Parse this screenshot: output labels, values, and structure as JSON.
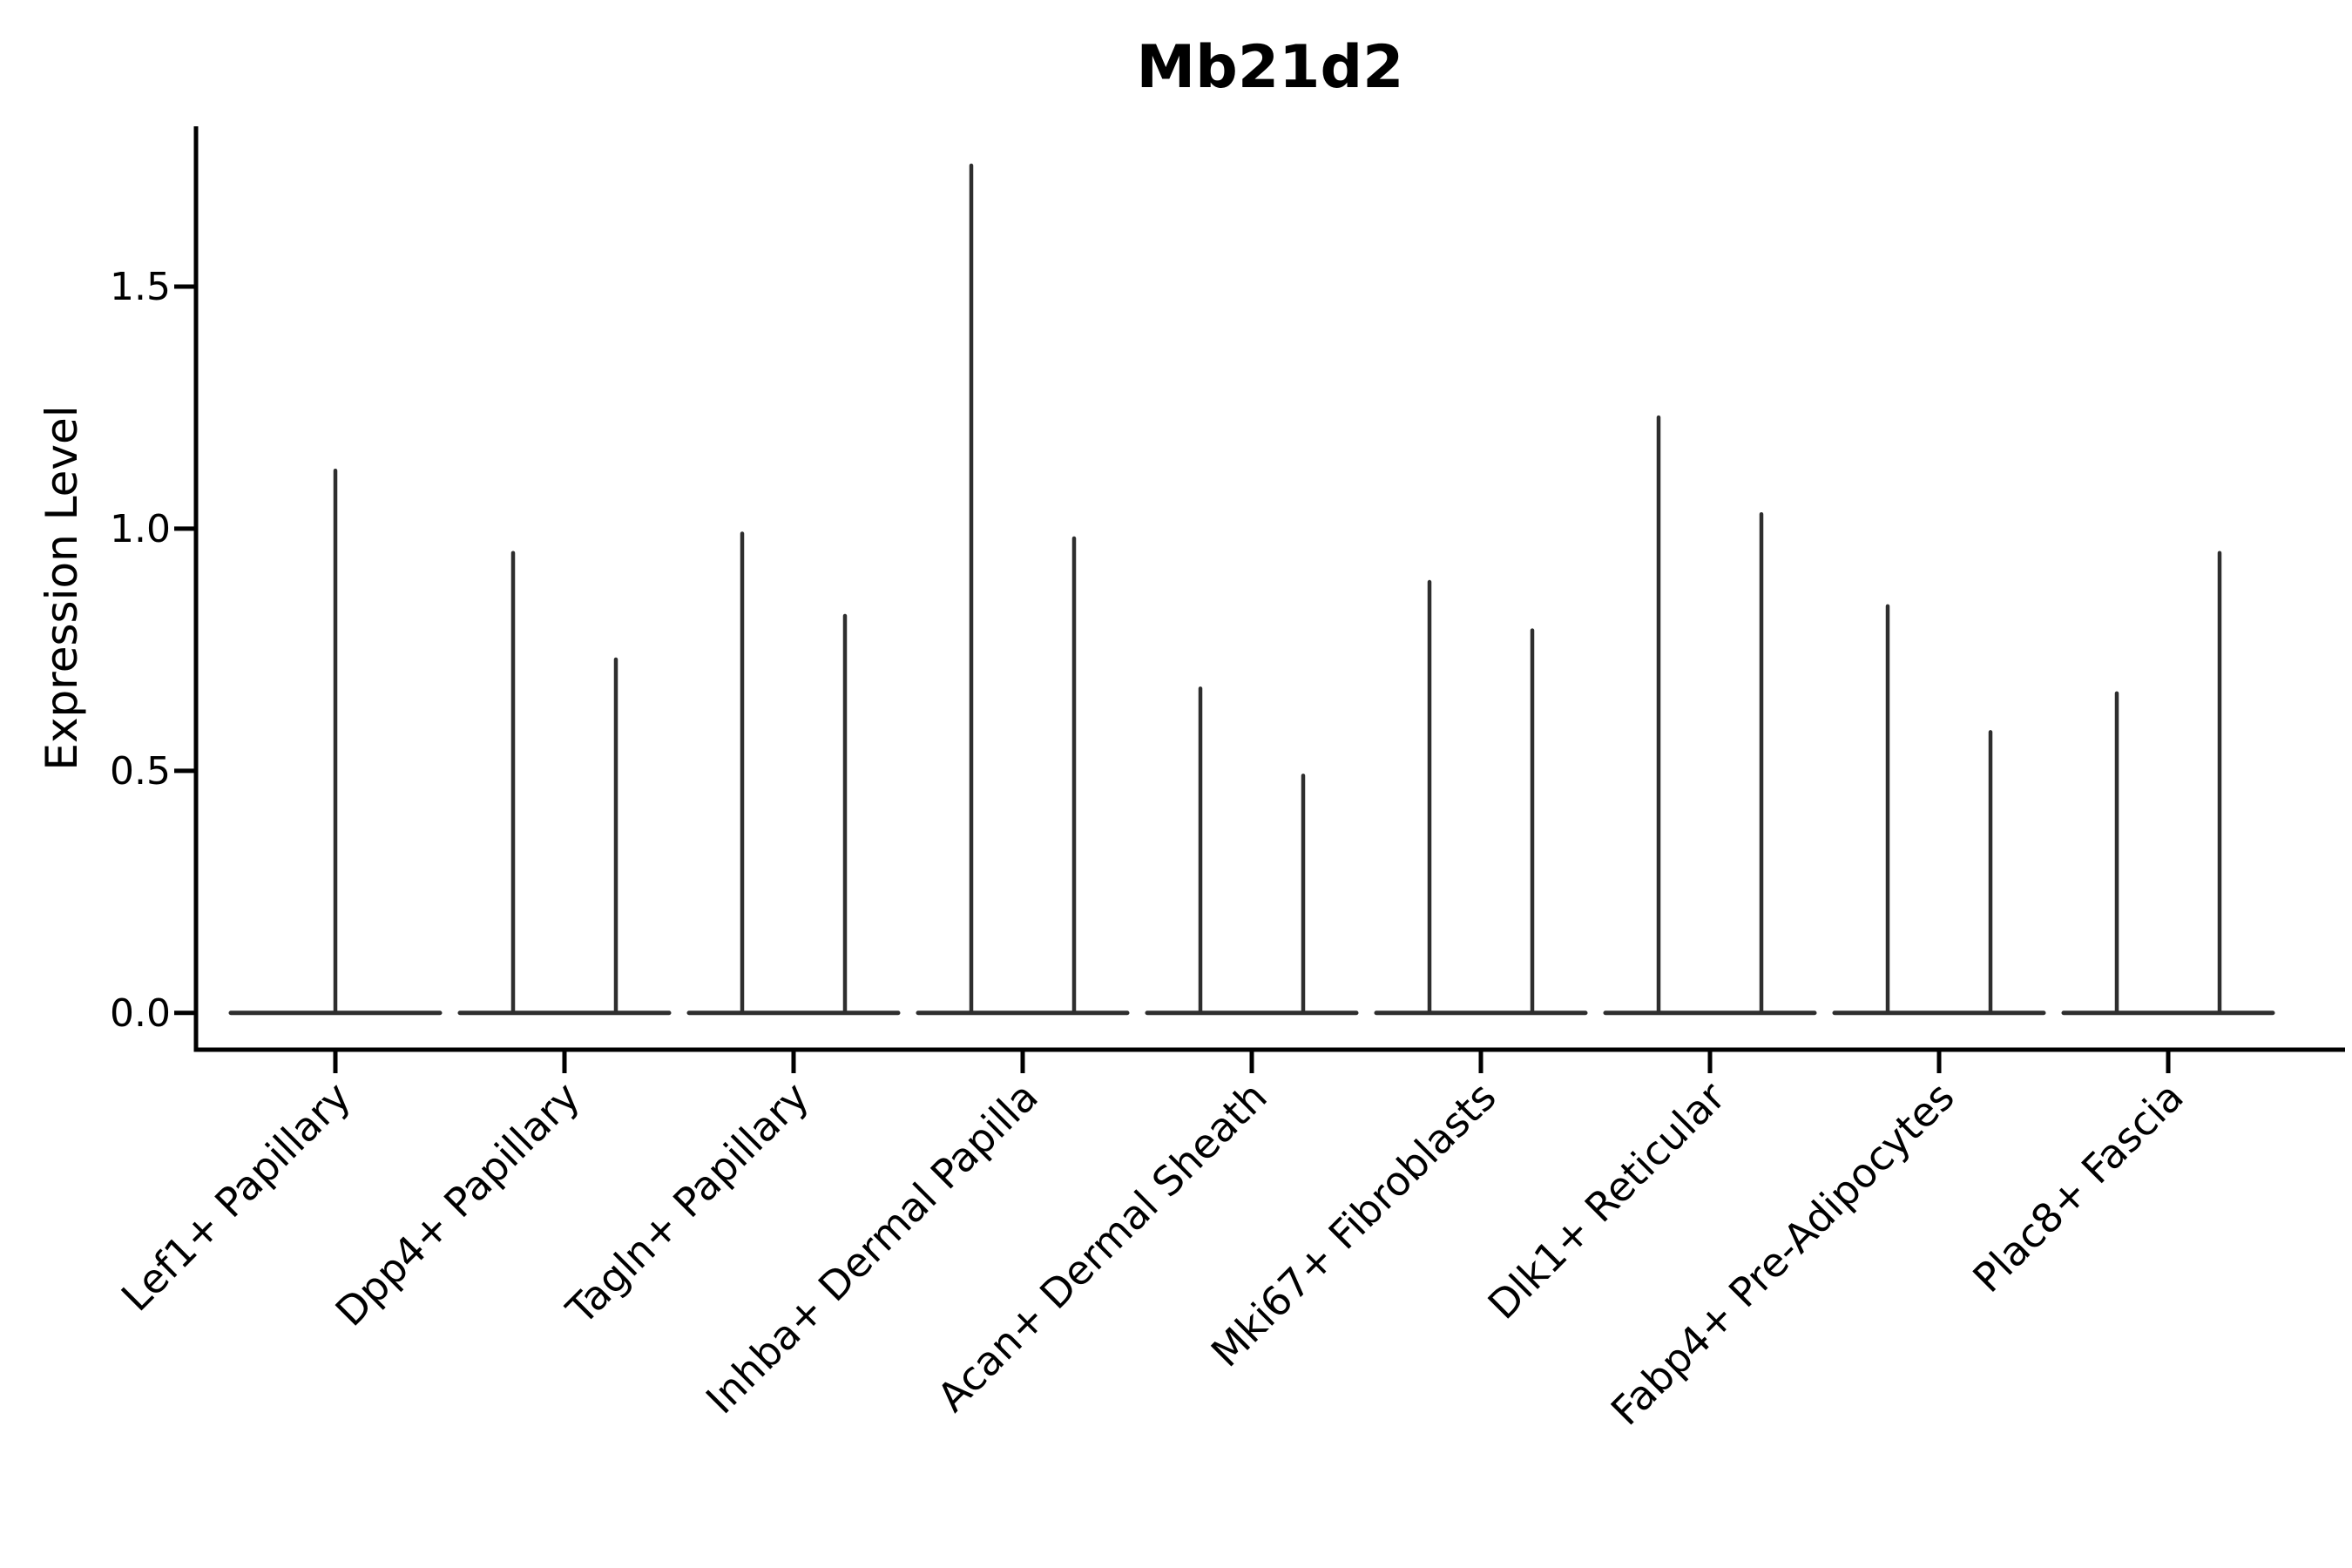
{
  "chart_data": {
    "type": "violin",
    "title": "Mb21d2",
    "ylabel": "Expression Level",
    "xlabel": "",
    "grid": false,
    "legend": null,
    "background_color": "#ffffff",
    "ylim": [
      -0.076,
      1.831
    ],
    "yticks": [
      0.0,
      0.5,
      1.0,
      1.5
    ],
    "ytick_labels": [
      "0.0",
      "0.5",
      "1.0",
      "1.5"
    ],
    "xtick_rotation_deg": 45,
    "baseline_value": 0.0,
    "categories": [
      "Lef1+ Papillary",
      "Dpp4+ Papillary",
      "Tagln+ Papillary",
      "Inhba+ Dermal Papilla",
      "Acan+ Dermal Sheath",
      "Mki67+ Fibroblasts",
      "Dlk1+ Reticular",
      "Fabp4+ Pre-Adipocytes",
      "Plac8+ Fascia"
    ],
    "violins": [
      {
        "category": "Lef1+ Papillary",
        "spikes": [
          1.12
        ]
      },
      {
        "category": "Dpp4+ Papillary",
        "spikes": [
          0.95,
          0.73
        ]
      },
      {
        "category": "Tagln+ Papillary",
        "spikes": [
          0.99,
          0.82
        ]
      },
      {
        "category": "Inhba+ Dermal Papilla",
        "spikes": [
          1.75,
          0.98
        ]
      },
      {
        "category": "Acan+ Dermal Sheath",
        "spikes": [
          0.67,
          0.49
        ]
      },
      {
        "category": "Mki67+ Fibroblasts",
        "spikes": [
          0.89,
          0.79
        ]
      },
      {
        "category": "Dlk1+ Reticular",
        "spikes": [
          1.23,
          1.03
        ]
      },
      {
        "category": "Fabp4+ Pre-Adipocytes",
        "spikes": [
          0.84,
          0.58
        ]
      },
      {
        "category": "Plac8+ Fascia",
        "spikes": [
          0.66,
          0.95
        ]
      }
    ],
    "colors": {
      "violin_line": "#2e2e2e",
      "axis_line": "#000000",
      "text": "#000000"
    }
  }
}
